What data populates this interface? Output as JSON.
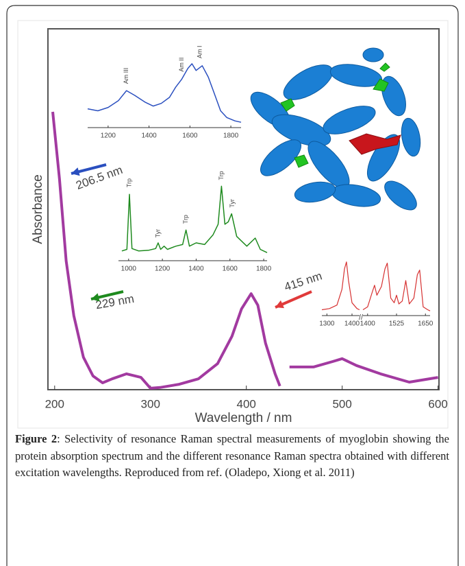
{
  "chart_data": [
    {
      "type": "line",
      "xlabel": "Wavelength / nm",
      "ylabel": "Absorbance",
      "color": "#a23aa0",
      "xlim": [
        193,
        601
      ],
      "xticks": [
        200,
        300,
        400,
        500,
        600
      ],
      "ylim": [
        0,
        100
      ],
      "x": [
        198,
        205,
        212,
        220,
        230,
        240,
        250,
        260,
        275,
        290,
        300,
        310,
        330,
        350,
        370,
        385,
        395,
        405,
        412,
        420,
        430,
        435,
        440,
        445,
        470,
        490,
        500,
        515,
        540,
        570,
        600
      ],
      "values": [
        77,
        58.5,
        35.7,
        20.5,
        9,
        3.8,
        1.9,
        3,
        4.4,
        3.4,
        0.4,
        0.6,
        1.5,
        3,
        7.2,
        14.8,
        22.4,
        26.6,
        23.4,
        12.9,
        4.4,
        1,
        null,
        6.3,
        6.3,
        7.8,
        8.6,
        6.7,
        4.4,
        2.1,
        3.4
      ],
      "annotations": [
        {
          "text": "206.5 nm",
          "color": "#2a4fbf"
        },
        {
          "text": "229 nm",
          "color": "#1e8a1e"
        },
        {
          "text": "415 nm",
          "color": "#e03a3a"
        }
      ]
    },
    {
      "type": "line",
      "color": "#2a4fbf",
      "xlim": [
        1100,
        1850
      ],
      "xticks": [
        1200,
        1400,
        1600,
        1800
      ],
      "ylim": [
        0,
        100
      ],
      "x": [
        1100,
        1150,
        1200,
        1250,
        1290,
        1330,
        1380,
        1420,
        1460,
        1500,
        1530,
        1560,
        1590,
        1610,
        1630,
        1660,
        1690,
        1720,
        1750,
        1780,
        1820,
        1850
      ],
      "values": [
        28,
        25,
        30,
        40,
        55,
        48,
        38,
        32,
        36,
        45,
        60,
        72,
        88,
        95,
        85,
        92,
        75,
        50,
        25,
        15,
        10,
        8
      ],
      "annotations": [
        {
          "text": "Am III",
          "x": 1290,
          "y": 62
        },
        {
          "text": "Am II",
          "x": 1560,
          "y": 80
        },
        {
          "text": "Am I",
          "x": 1650,
          "y": 100
        }
      ]
    },
    {
      "type": "line",
      "color": "#1e8a1e",
      "xlim": [
        940,
        1820
      ],
      "xticks": [
        1000,
        1200,
        1400,
        1600,
        1800
      ],
      "ylim": [
        0,
        100
      ],
      "x": [
        960,
        990,
        1005,
        1020,
        1060,
        1120,
        1160,
        1175,
        1190,
        1210,
        1230,
        1280,
        1320,
        1340,
        1360,
        1400,
        1450,
        1500,
        1530,
        1550,
        1570,
        1590,
        1610,
        1640,
        1700,
        1750,
        1780,
        1820
      ],
      "values": [
        12,
        14,
        82,
        15,
        12,
        13,
        15,
        22,
        14,
        18,
        14,
        18,
        20,
        38,
        18,
        22,
        20,
        32,
        45,
        92,
        45,
        48,
        58,
        30,
        18,
        28,
        14,
        10
      ],
      "annotations": [
        {
          "text": "Trp",
          "x": 1005,
          "y": 88
        },
        {
          "text": "Tyr",
          "x": 1175,
          "y": 26
        },
        {
          "text": "Trp",
          "x": 1340,
          "y": 43
        },
        {
          "text": "Trp",
          "x": 1550,
          "y": 97
        },
        {
          "text": "Tyr",
          "x": 1615,
          "y": 63
        }
      ]
    },
    {
      "type": "line",
      "color": "#d63030",
      "xlim": [
        1280,
        1430
      ],
      "xticks": [
        1300,
        1400
      ],
      "ylim": [
        0,
        100
      ],
      "x": [
        1280,
        1310,
        1340,
        1360,
        1370,
        1378,
        1386,
        1400,
        1420,
        1430
      ],
      "values": [
        10,
        12,
        18,
        45,
        80,
        92,
        60,
        22,
        12,
        10
      ]
    },
    {
      "type": "line",
      "color": "#d63030",
      "xlim": [
        1380,
        1670
      ],
      "xticks": [
        1400,
        1525,
        1650
      ],
      "ylim": [
        0,
        100
      ],
      "x": [
        1380,
        1400,
        1420,
        1430,
        1440,
        1460,
        1475,
        1485,
        1500,
        1515,
        1525,
        1535,
        1550,
        1565,
        1580,
        1600,
        1615,
        1625,
        1640,
        1660,
        1670
      ],
      "values": [
        10,
        15,
        40,
        52,
        35,
        50,
        80,
        90,
        30,
        22,
        35,
        20,
        25,
        60,
        20,
        30,
        70,
        78,
        15,
        10,
        8
      ]
    }
  ],
  "caption": {
    "label": "Figure 2",
    "text": ": Selectivity of resonance Raman spectral measurements of myoglobin showing the protein absorption spectrum and the different resonance Raman spectra obtained with different excitation wavelengths. Reproduced from ref. (Oladepo, Xiong et al. 2011)"
  }
}
